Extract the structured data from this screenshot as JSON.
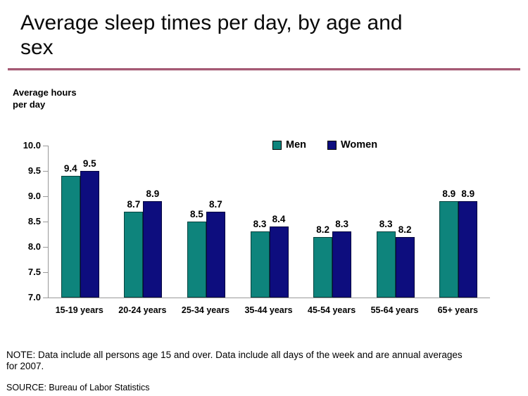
{
  "slide": {
    "title": "Average sleep times per day, by age and\nsex",
    "y_axis_title": "Average hours\nper day",
    "note": "NOTE: Data include all persons age 15 and over. Data include all days of the week and are annual averages\nfor 2007.",
    "source": "SOURCE: Bureau of Labor Statistics"
  },
  "legend": {
    "items": [
      {
        "label": "Men"
      },
      {
        "label": "Women"
      }
    ]
  },
  "colors": {
    "men_bar": "#0E847C",
    "men_border": "#06423E",
    "women_bar": "#0D0D7E",
    "women_border": "#06063F",
    "title_rule": "#7D1B3D",
    "axis_line": "#999999",
    "text": "#000000"
  },
  "chart_data": {
    "type": "bar",
    "title": "Average sleep times per day, by age and sex",
    "xlabel": "",
    "ylabel": "Average hours per day",
    "categories": [
      "15-19 years",
      "20-24 years",
      "25-34 years",
      "35-44 years",
      "45-54 years",
      "55-64 years",
      "65+ years"
    ],
    "series": [
      {
        "name": "Men",
        "values": [
          9.4,
          8.7,
          8.5,
          8.3,
          8.2,
          8.3,
          8.9
        ]
      },
      {
        "name": "Women",
        "values": [
          9.5,
          8.9,
          8.7,
          8.4,
          8.3,
          8.2,
          8.9
        ]
      }
    ],
    "ylim": [
      7.0,
      10.0
    ],
    "yticks": [
      "10.0",
      "9.5",
      "9.0",
      "8.5",
      "8.0",
      "7.5",
      "7.0"
    ],
    "grid": false,
    "bar_value_labels": true,
    "legend_position": "top-center"
  }
}
